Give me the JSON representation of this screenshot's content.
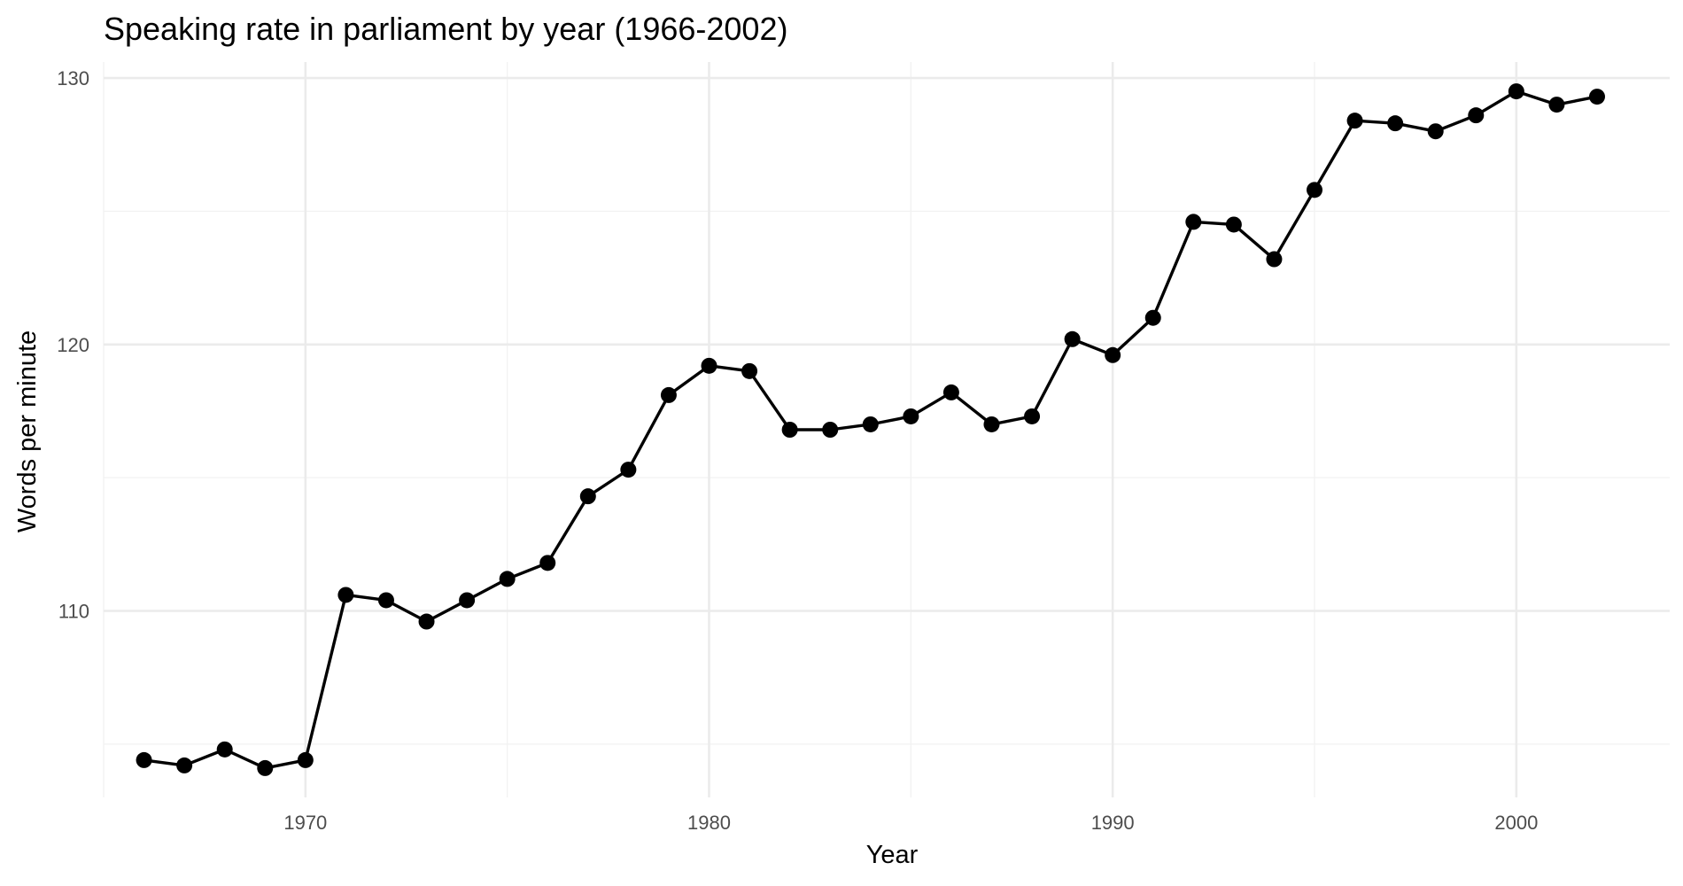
{
  "chart_data": {
    "type": "line",
    "title": "Speaking rate in parliament by year (1966-2002)",
    "xlabel": "Year",
    "ylabel": "Words per minute",
    "x": [
      1966,
      1967,
      1968,
      1969,
      1970,
      1971,
      1972,
      1973,
      1974,
      1975,
      1976,
      1977,
      1978,
      1979,
      1980,
      1981,
      1982,
      1983,
      1984,
      1985,
      1986,
      1987,
      1988,
      1989,
      1990,
      1991,
      1992,
      1993,
      1994,
      1995,
      1996,
      1997,
      1998,
      1999,
      2000,
      2001,
      2002
    ],
    "series": [
      {
        "values": [
          104.4,
          104.2,
          104.8,
          104.1,
          104.4,
          110.6,
          110.4,
          109.6,
          110.4,
          111.2,
          111.8,
          114.3,
          115.3,
          118.1,
          119.2,
          119.0,
          116.8,
          116.8,
          117.0,
          117.3,
          118.2,
          117.0,
          117.3,
          120.2,
          119.6,
          121.0,
          124.6,
          124.5,
          123.2,
          125.8,
          128.4,
          128.3,
          128.0,
          128.6,
          129.5,
          129.0,
          129.3
        ]
      }
    ],
    "xlim": [
      1965,
      2003.8
    ],
    "ylim": [
      103.0,
      130.6
    ],
    "x_ticks": [
      1970,
      1980,
      1990,
      2000
    ],
    "x_tick_labels": [
      "1970",
      "1980",
      "1990",
      "2000"
    ],
    "y_ticks": [
      110,
      120,
      130
    ],
    "y_tick_labels": [
      "110",
      "120",
      "130"
    ],
    "x_minor_ticks": [
      1965,
      1975,
      1985,
      1995
    ],
    "y_minor_ticks": [
      105,
      115,
      125
    ],
    "grid": true,
    "legend": "none",
    "colors": {
      "line": "#000000",
      "points": "#000000",
      "grid": "#ebebeb",
      "background": "#ffffff"
    }
  }
}
